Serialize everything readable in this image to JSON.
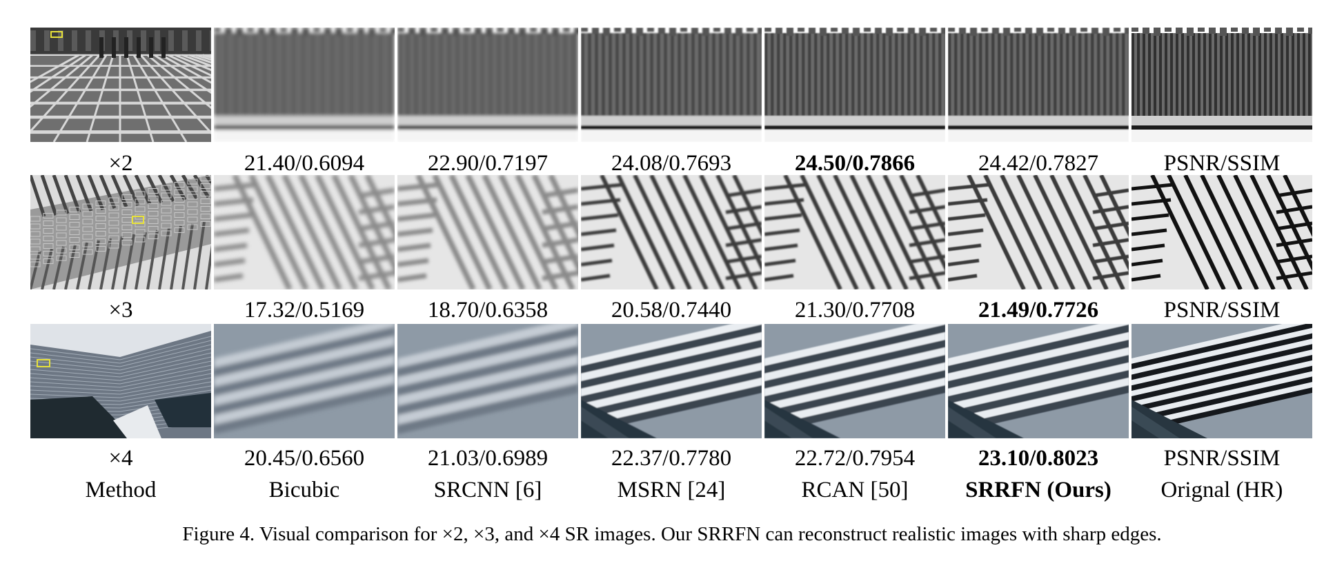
{
  "rows": [
    {
      "scale_label": "×2",
      "scores": [
        "21.40/0.6094",
        "22.90/0.7197",
        "24.08/0.7693",
        "24.50/0.7866",
        "24.42/0.7827",
        "PSNR/SSIM"
      ],
      "best_index": 3,
      "scene": "pavement"
    },
    {
      "scale_label": "×3",
      "scores": [
        "17.32/0.5169",
        "18.70/0.6358",
        "20.58/0.7440",
        "21.30/0.7708",
        "21.49/0.7726",
        "PSNR/SSIM"
      ],
      "best_index": 4,
      "scene": "building-facade"
    },
    {
      "scale_label": "×4",
      "scores": [
        "20.45/0.6560",
        "21.03/0.6989",
        "22.37/0.7780",
        "22.72/0.7954",
        "23.10/0.8023",
        "PSNR/SSIM"
      ],
      "best_index": 4,
      "scene": "glass-tower"
    }
  ],
  "method_header": "Method",
  "methods": [
    "Bicubic",
    "SRCNN [6]",
    "MSRN [24]",
    "RCAN [50]",
    "SRRFN (Ours)",
    "Orignal (HR)"
  ],
  "ours_index": 4,
  "caption": "Figure 4. Visual comparison for ×2, ×3, and ×4 SR images. Our SRRFN can reconstruct realistic images with sharp edges.",
  "highlight_box_color": "#e8e23a"
}
